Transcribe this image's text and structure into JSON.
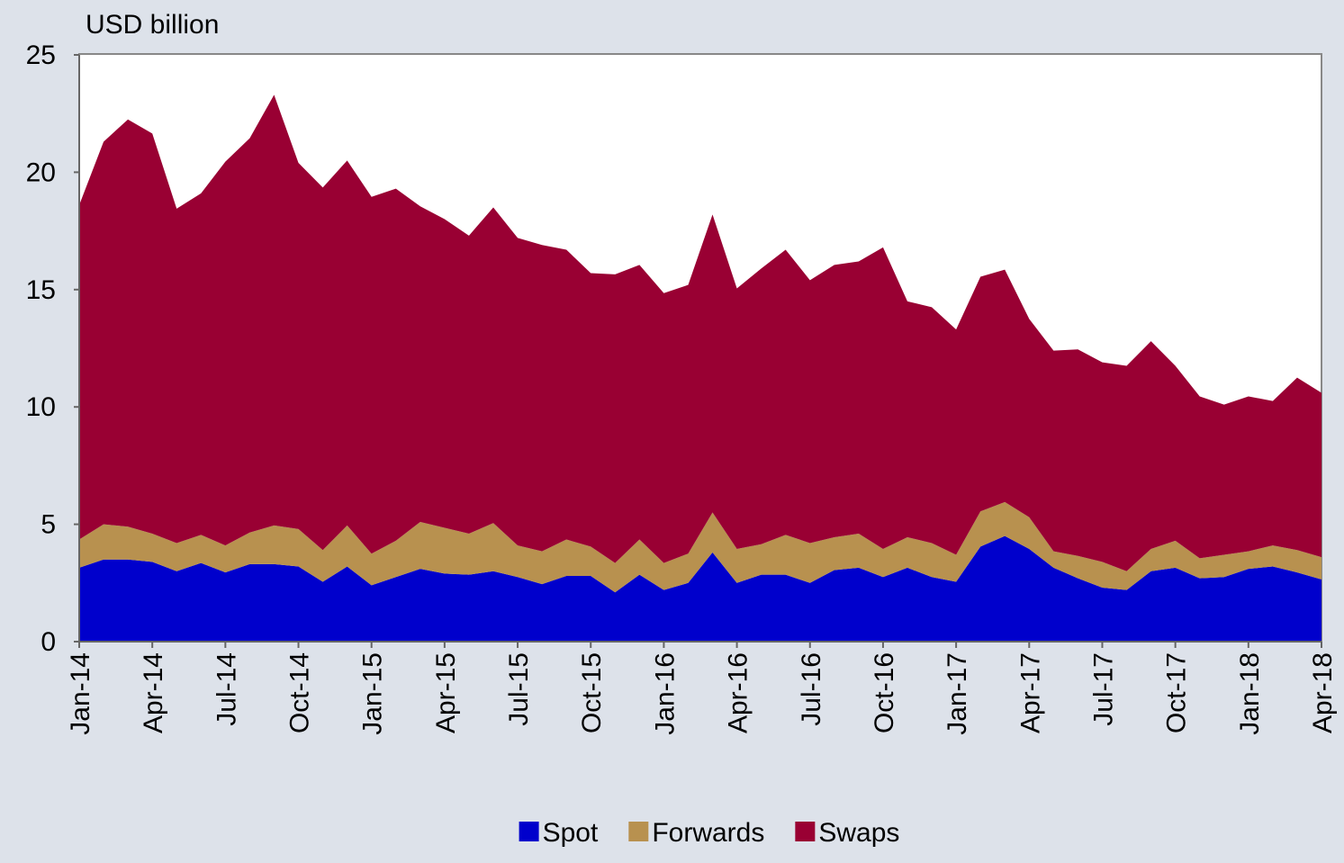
{
  "chart_data": {
    "type": "stacked_area",
    "y_axis_label": "USD billion",
    "categories": [
      "Jan-14",
      null,
      null,
      "Apr-14",
      null,
      null,
      "Jul-14",
      null,
      null,
      "Oct-14",
      null,
      null,
      "Jan-15",
      null,
      null,
      "Apr-15",
      null,
      null,
      "Jul-15",
      null,
      null,
      "Oct-15",
      null,
      null,
      "Jan-16",
      null,
      null,
      "Apr-16",
      null,
      null,
      "Jul-16",
      null,
      null,
      "Oct-16",
      null,
      null,
      "Jan-17",
      null,
      null,
      "Apr-17",
      null,
      null,
      "Jul-17",
      null,
      null,
      "Oct-17",
      null,
      null,
      "Jan-18",
      null,
      null,
      "Apr-18"
    ],
    "series": [
      {
        "name": "Spot",
        "color": "#0000cc",
        "values": [
          3.15,
          3.5,
          3.5,
          3.4,
          3.0,
          3.35,
          2.95,
          3.3,
          3.3,
          3.2,
          2.55,
          3.2,
          2.4,
          2.75,
          3.1,
          2.9,
          2.85,
          3.0,
          2.75,
          2.45,
          2.8,
          2.8,
          2.1,
          2.85,
          2.2,
          2.5,
          3.8,
          2.5,
          2.85,
          2.85,
          2.5,
          3.05,
          3.15,
          2.75,
          3.15,
          2.75,
          2.55,
          4.05,
          4.5,
          3.95,
          3.15,
          2.7,
          2.3,
          2.2,
          3.0,
          3.15,
          2.7,
          2.75,
          3.1,
          3.2,
          2.95,
          2.65
        ]
      },
      {
        "name": "Forwards",
        "color": "#b8914f",
        "values": [
          1.2,
          1.5,
          1.4,
          1.2,
          1.2,
          1.2,
          1.15,
          1.35,
          1.65,
          1.6,
          1.35,
          1.75,
          1.35,
          1.55,
          2.0,
          1.95,
          1.75,
          2.05,
          1.35,
          1.4,
          1.55,
          1.25,
          1.25,
          1.5,
          1.15,
          1.25,
          1.7,
          1.45,
          1.3,
          1.7,
          1.7,
          1.4,
          1.45,
          1.2,
          1.3,
          1.45,
          1.15,
          1.5,
          1.45,
          1.35,
          0.7,
          0.95,
          1.1,
          0.8,
          0.95,
          1.15,
          0.85,
          0.95,
          0.75,
          0.9,
          0.95,
          0.95
        ]
      },
      {
        "name": "Swaps",
        "color": "#990033",
        "values": [
          14.25,
          16.3,
          17.35,
          17.05,
          14.25,
          14.55,
          16.35,
          16.8,
          18.35,
          15.6,
          15.45,
          15.55,
          15.2,
          15.0,
          13.45,
          13.15,
          12.7,
          13.45,
          13.1,
          13.05,
          12.35,
          11.65,
          12.3,
          11.7,
          11.5,
          11.45,
          12.7,
          11.1,
          11.75,
          12.15,
          11.2,
          11.6,
          11.6,
          12.85,
          10.05,
          10.05,
          9.6,
          10.0,
          9.9,
          8.45,
          8.55,
          8.8,
          8.5,
          8.75,
          8.85,
          7.45,
          6.9,
          6.4,
          6.6,
          6.15,
          7.35,
          7.0
        ]
      }
    ],
    "ylim": [
      0,
      25
    ],
    "yticks": [
      0,
      5,
      10,
      15,
      20,
      25
    ],
    "grid": false,
    "legend": "bottom"
  }
}
